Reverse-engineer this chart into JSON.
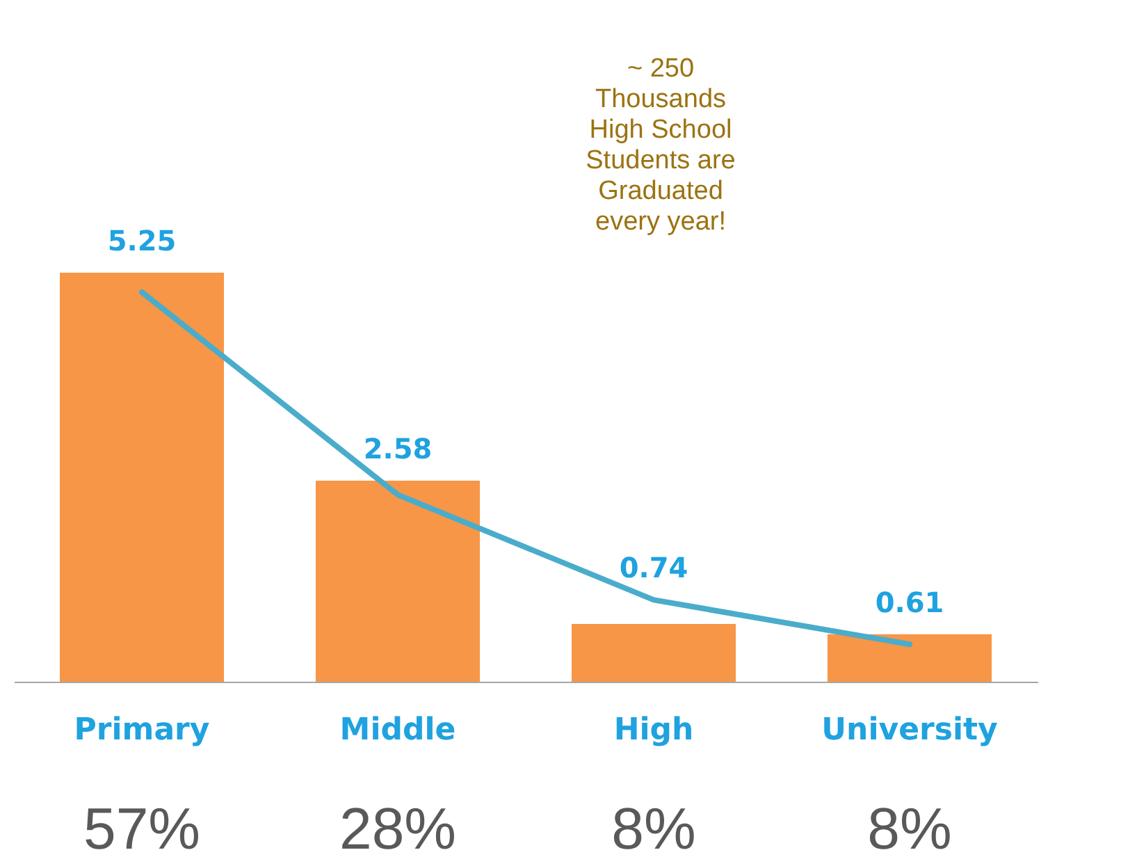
{
  "chart_data": {
    "type": "bar",
    "categories": [
      "Primary",
      "Middle",
      "High",
      "University"
    ],
    "series": [
      {
        "color": "#f79646",
        "values": [
          5.25,
          2.58,
          0.74,
          0.61
        ],
        "value_labels": [
          "5.25",
          "2.58",
          "0.74",
          "0.61"
        ]
      },
      {
        "type": "line",
        "color": "#4aaccb",
        "values": [
          5.0,
          2.4,
          1.05,
          0.48
        ]
      }
    ],
    "grid": false,
    "tick_labels": "x",
    "annotations": [
      "57%",
      "28%",
      "8%",
      "8%",
      "~ 250 Thousands High School Students are Graduated every year!"
    ]
  }
}
